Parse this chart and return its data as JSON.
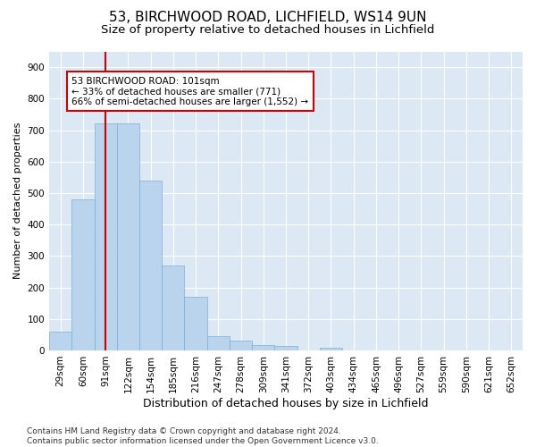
{
  "title1": "53, BIRCHWOOD ROAD, LICHFIELD, WS14 9UN",
  "title2": "Size of property relative to detached houses in Lichfield",
  "xlabel": "Distribution of detached houses by size in Lichfield",
  "ylabel": "Number of detached properties",
  "categories": [
    "29sqm",
    "60sqm",
    "91sqm",
    "122sqm",
    "154sqm",
    "185sqm",
    "216sqm",
    "247sqm",
    "278sqm",
    "309sqm",
    "341sqm",
    "372sqm",
    "403sqm",
    "434sqm",
    "465sqm",
    "496sqm",
    "527sqm",
    "559sqm",
    "590sqm",
    "621sqm",
    "652sqm"
  ],
  "values": [
    60,
    480,
    720,
    720,
    540,
    270,
    170,
    45,
    32,
    16,
    14,
    0,
    8,
    0,
    0,
    0,
    0,
    0,
    0,
    0,
    0
  ],
  "bar_color": "#bad4ed",
  "bar_edge_color": "#7bafd4",
  "vline_x_idx": 2,
  "vline_color": "#cc0000",
  "annotation_text": "53 BIRCHWOOD ROAD: 101sqm\n← 33% of detached houses are smaller (771)\n66% of semi-detached houses are larger (1,552) →",
  "annotation_box_color": "#ffffff",
  "annotation_box_edge": "#cc0000",
  "ylim": [
    0,
    950
  ],
  "yticks": [
    0,
    100,
    200,
    300,
    400,
    500,
    600,
    700,
    800,
    900
  ],
  "background_color": "#dce9f5",
  "grid_color": "#ffffff",
  "footer_text": "Contains HM Land Registry data © Crown copyright and database right 2024.\nContains public sector information licensed under the Open Government Licence v3.0.",
  "title1_fontsize": 11,
  "title2_fontsize": 9.5,
  "xlabel_fontsize": 9,
  "ylabel_fontsize": 8,
  "tick_fontsize": 7.5,
  "annotation_fontsize": 7.5,
  "footer_fontsize": 6.5
}
